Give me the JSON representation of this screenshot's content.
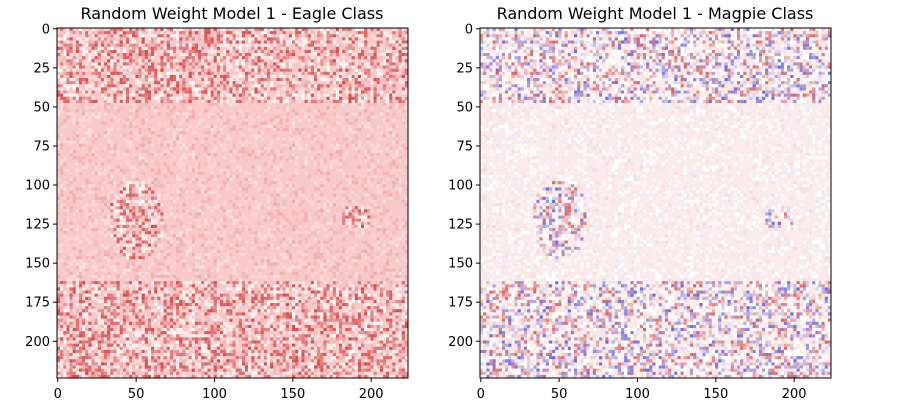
{
  "chart_data": [
    {
      "type": "heatmap",
      "title": "Random Weight Model 1 - Eagle Class",
      "xlabel": "",
      "ylabel": "",
      "xlim": [
        0,
        224
      ],
      "ylim": [
        224,
        0
      ],
      "x_ticks": [
        "0",
        "50",
        "100",
        "150",
        "200"
      ],
      "y_ticks": [
        "0",
        "25",
        "50",
        "75",
        "100",
        "125",
        "150",
        "175",
        "200"
      ],
      "colormap": "diverging blue-white-red",
      "base_color": "#f9c8c8",
      "grid": false
    },
    {
      "type": "heatmap",
      "title": "Random Weight Model 1 - Magpie Class",
      "xlabel": "",
      "ylabel": "",
      "xlim": [
        0,
        224
      ],
      "ylim": [
        224,
        0
      ],
      "x_ticks": [
        "0",
        "50",
        "100",
        "150",
        "200"
      ],
      "y_ticks": [
        "0",
        "25",
        "50",
        "75",
        "100",
        "125",
        "150",
        "175",
        "200"
      ],
      "colormap": "diverging blue-white-red",
      "base_color": "#fbeaea",
      "grid": false
    }
  ]
}
